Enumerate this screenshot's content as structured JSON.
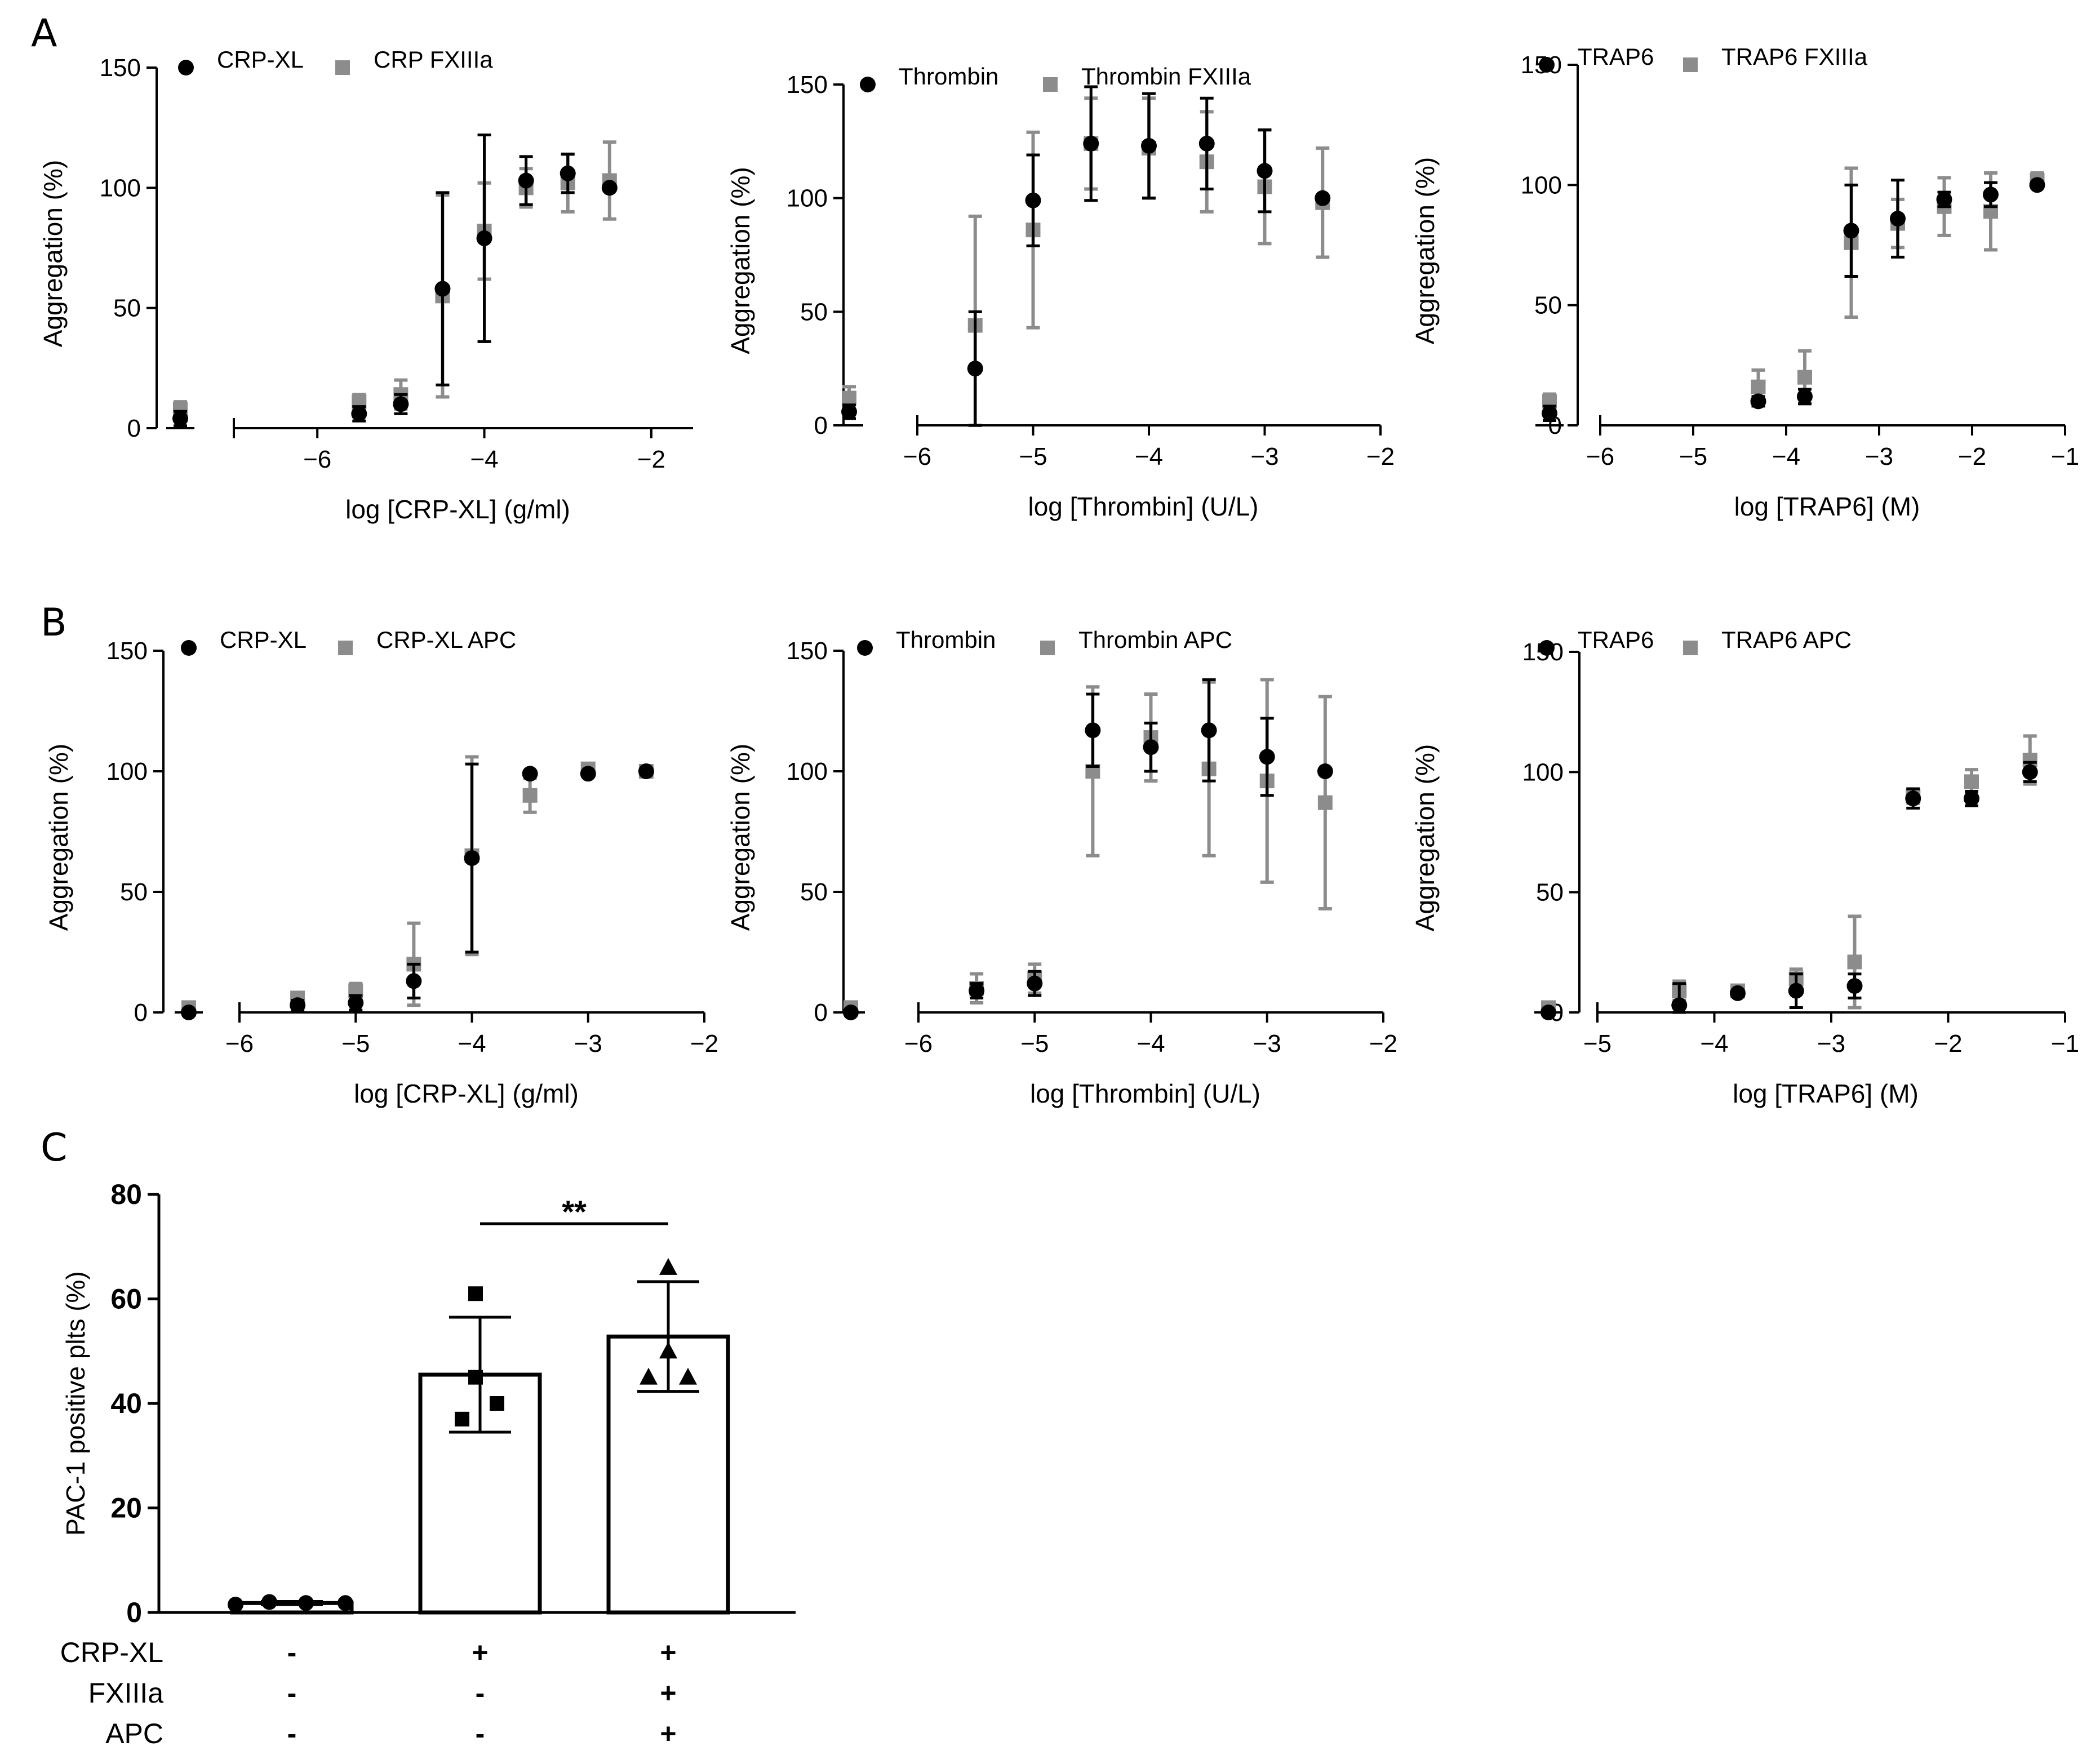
{
  "figure": {
    "panel_labels": [
      "A",
      "B",
      "C"
    ],
    "colors": {
      "black": "#000000",
      "gray": "#8c8c8c"
    }
  },
  "chart_data": [
    {
      "id": "A1",
      "type": "scatter",
      "xlabel": "log [CRP-XL] (g/ml)",
      "ylabel": "Aggregation (%)",
      "xlim": [
        -7,
        -1.5
      ],
      "ylim": [
        0,
        150
      ],
      "yticks": [
        0,
        50,
        100,
        150
      ],
      "xticks": [
        -6,
        -4,
        -2
      ],
      "baseline_x_label": "",
      "series": [
        {
          "name": "CRP-XL",
          "marker": "circle",
          "color": "#000000",
          "baseline": {
            "y": 4,
            "err": 3
          },
          "points": [
            {
              "x": -5.5,
              "y": 6,
              "err": 3
            },
            {
              "x": -5,
              "y": 10,
              "err": 4
            },
            {
              "x": -4.5,
              "y": 58,
              "err": 40
            },
            {
              "x": -4,
              "y": 79,
              "err": 43
            },
            {
              "x": -3.5,
              "y": 103,
              "err": 10
            },
            {
              "x": -3,
              "y": 106,
              "err": 8
            },
            {
              "x": -2.5,
              "y": 100,
              "err": 0
            }
          ]
        },
        {
          "name": "CRP FXIIIa",
          "marker": "square",
          "color": "#8c8c8c",
          "baseline": {
            "y": 8,
            "err": 3
          },
          "points": [
            {
              "x": -5.5,
              "y": 11,
              "err": 3
            },
            {
              "x": -5,
              "y": 14,
              "err": 6
            },
            {
              "x": -4.5,
              "y": 55,
              "err": 42
            },
            {
              "x": -4,
              "y": 82,
              "err": 20
            },
            {
              "x": -3.5,
              "y": 100,
              "err": 8
            },
            {
              "x": -3,
              "y": 102,
              "err": 12
            },
            {
              "x": -2.5,
              "y": 103,
              "err": 16
            }
          ]
        }
      ]
    },
    {
      "id": "A2",
      "type": "scatter",
      "xlabel": "log [Thrombin] (U/L)",
      "ylabel": "Aggregation (%)",
      "xlim": [
        -6,
        -2
      ],
      "ylim": [
        0,
        150
      ],
      "yticks": [
        0,
        50,
        100,
        150
      ],
      "xticks": [
        -6,
        -5,
        -4,
        -3,
        -2
      ],
      "series": [
        {
          "name": "Thrombin",
          "marker": "circle",
          "color": "#000000",
          "baseline": {
            "y": 6,
            "err": 3
          },
          "points": [
            {
              "x": -5.5,
              "y": 25,
              "err": 25
            },
            {
              "x": -5,
              "y": 99,
              "err": 20
            },
            {
              "x": -4.5,
              "y": 124,
              "err": 25
            },
            {
              "x": -4,
              "y": 123,
              "err": 23
            },
            {
              "x": -3.5,
              "y": 124,
              "err": 20
            },
            {
              "x": -3,
              "y": 112,
              "err": 18
            },
            {
              "x": -2.5,
              "y": 100,
              "err": 0
            }
          ]
        },
        {
          "name": "Thrombin FXIIIa",
          "marker": "square",
          "color": "#8c8c8c",
          "baseline": {
            "y": 12,
            "err": 5
          },
          "points": [
            {
              "x": -5.5,
              "y": 44,
              "err": 48
            },
            {
              "x": -5,
              "y": 86,
              "err": 43
            },
            {
              "x": -4.5,
              "y": 124,
              "err": 20
            },
            {
              "x": -4,
              "y": 122,
              "err": 22
            },
            {
              "x": -3.5,
              "y": 116,
              "err": 22
            },
            {
              "x": -3,
              "y": 105,
              "err": 25
            },
            {
              "x": -2.5,
              "y": 98,
              "err": 24
            }
          ]
        }
      ]
    },
    {
      "id": "A3",
      "type": "scatter",
      "xlabel": "log [TRAP6] (M)",
      "ylabel": "Aggregation (%)",
      "xlim": [
        -6,
        -1
      ],
      "ylim": [
        0,
        150
      ],
      "yticks": [
        0,
        50,
        100,
        150
      ],
      "xticks": [
        -6,
        -5,
        -4,
        -3,
        -2,
        -1
      ],
      "series": [
        {
          "name": "TRAP6",
          "marker": "circle",
          "color": "#000000",
          "baseline": {
            "y": 5,
            "err": 3
          },
          "points": [
            {
              "x": -4.3,
              "y": 10,
              "err": 2
            },
            {
              "x": -3.8,
              "y": 12,
              "err": 3
            },
            {
              "x": -3.3,
              "y": 81,
              "err": 19
            },
            {
              "x": -2.8,
              "y": 86,
              "err": 16
            },
            {
              "x": -2.3,
              "y": 94,
              "err": 3
            },
            {
              "x": -1.8,
              "y": 96,
              "err": 5
            },
            {
              "x": -1.3,
              "y": 100,
              "err": 0
            }
          ]
        },
        {
          "name": "TRAP6 FXIIIa",
          "marker": "square",
          "color": "#8c8c8c",
          "baseline": {
            "y": 10,
            "err": 3
          },
          "points": [
            {
              "x": -4.3,
              "y": 16,
              "err": 7
            },
            {
              "x": -3.8,
              "y": 20,
              "err": 11
            },
            {
              "x": -3.3,
              "y": 76,
              "err": 31
            },
            {
              "x": -2.8,
              "y": 84,
              "err": 10
            },
            {
              "x": -2.3,
              "y": 91,
              "err": 12
            },
            {
              "x": -1.8,
              "y": 89,
              "err": 16
            },
            {
              "x": -1.3,
              "y": 102,
              "err": 3
            }
          ]
        }
      ]
    },
    {
      "id": "B1",
      "type": "scatter",
      "xlabel": "log [CRP-XL] (g/ml)",
      "ylabel": "Aggregation (%)",
      "xlim": [
        -6,
        -2
      ],
      "ylim": [
        0,
        150
      ],
      "yticks": [
        0,
        50,
        100,
        150
      ],
      "xticks": [
        -6,
        -5,
        -4,
        -3,
        -2
      ],
      "series": [
        {
          "name": "CRP-XL",
          "marker": "circle",
          "color": "#000000",
          "baseline": {
            "y": 0,
            "err": 0
          },
          "points": [
            {
              "x": -5.5,
              "y": 3,
              "err": 2
            },
            {
              "x": -5,
              "y": 4,
              "err": 3
            },
            {
              "x": -4.5,
              "y": 13,
              "err": 7
            },
            {
              "x": -4,
              "y": 64,
              "err": 39
            },
            {
              "x": -3.5,
              "y": 99,
              "err": 1
            },
            {
              "x": -3,
              "y": 99,
              "err": 1
            },
            {
              "x": -2.5,
              "y": 100,
              "err": 0
            }
          ]
        },
        {
          "name": "CRP-XL APC",
          "marker": "square",
          "color": "#8c8c8c",
          "baseline": {
            "y": 2,
            "err": 2
          },
          "points": [
            {
              "x": -5.5,
              "y": 6,
              "err": 2
            },
            {
              "x": -5,
              "y": 9,
              "err": 3
            },
            {
              "x": -4.5,
              "y": 20,
              "err": 17
            },
            {
              "x": -4,
              "y": 65,
              "err": 41
            },
            {
              "x": -3.5,
              "y": 90,
              "err": 7
            },
            {
              "x": -3,
              "y": 101,
              "err": 2
            },
            {
              "x": -2.5,
              "y": 100,
              "err": 1
            }
          ]
        }
      ]
    },
    {
      "id": "B2",
      "type": "scatter",
      "xlabel": "log [Thrombin] (U/L)",
      "ylabel": "Aggregation (%)",
      "xlim": [
        -6,
        -2
      ],
      "ylim": [
        0,
        150
      ],
      "yticks": [
        0,
        50,
        100,
        150
      ],
      "xticks": [
        -6,
        -5,
        -4,
        -3,
        -2
      ],
      "series": [
        {
          "name": "Thrombin",
          "marker": "circle",
          "color": "#000000",
          "baseline": {
            "y": 0,
            "err": 0
          },
          "points": [
            {
              "x": -5.5,
              "y": 9,
              "err": 3
            },
            {
              "x": -5,
              "y": 12,
              "err": 5
            },
            {
              "x": -4.5,
              "y": 117,
              "err": 15
            },
            {
              "x": -4,
              "y": 110,
              "err": 10
            },
            {
              "x": -3.5,
              "y": 117,
              "err": 21
            },
            {
              "x": -3,
              "y": 106,
              "err": 16
            },
            {
              "x": -2.5,
              "y": 100,
              "err": 0
            }
          ]
        },
        {
          "name": "Thrombin APC",
          "marker": "square",
          "color": "#8c8c8c",
          "baseline": {
            "y": 2,
            "err": 2
          },
          "points": [
            {
              "x": -5.5,
              "y": 10,
              "err": 6
            },
            {
              "x": -5,
              "y": 14,
              "err": 6
            },
            {
              "x": -4.5,
              "y": 100,
              "err": 35
            },
            {
              "x": -4,
              "y": 114,
              "err": 18
            },
            {
              "x": -3.5,
              "y": 101,
              "err": 36
            },
            {
              "x": -3,
              "y": 96,
              "err": 42
            },
            {
              "x": -2.5,
              "y": 87,
              "err": 44
            }
          ]
        }
      ]
    },
    {
      "id": "B3",
      "type": "scatter",
      "xlabel": "log [TRAP6] (M)",
      "ylabel": "Aggregation (%)",
      "xlim": [
        -5,
        -1
      ],
      "ylim": [
        0,
        150
      ],
      "yticks": [
        0,
        50,
        100,
        150
      ],
      "xticks": [
        -5,
        -4,
        -3,
        -2,
        -1
      ],
      "series": [
        {
          "name": "TRAP6",
          "marker": "circle",
          "color": "#000000",
          "baseline": {
            "y": 0,
            "err": 0
          },
          "points": [
            {
              "x": -4.3,
              "y": 3,
              "err": 9
            },
            {
              "x": -3.8,
              "y": 8,
              "err": 1
            },
            {
              "x": -3.3,
              "y": 9,
              "err": 7
            },
            {
              "x": -2.8,
              "y": 11,
              "err": 5
            },
            {
              "x": -2.3,
              "y": 89,
              "err": 4
            },
            {
              "x": -1.8,
              "y": 89,
              "err": 3
            },
            {
              "x": -1.3,
              "y": 100,
              "err": 4
            }
          ]
        },
        {
          "name": "TRAP6 APC",
          "marker": "square",
          "color": "#8c8c8c",
          "baseline": {
            "y": 2,
            "err": 2
          },
          "points": [
            {
              "x": -4.3,
              "y": 9,
              "err": 4
            },
            {
              "x": -3.8,
              "y": 9,
              "err": 2
            },
            {
              "x": -3.3,
              "y": 14,
              "err": 4
            },
            {
              "x": -2.8,
              "y": 21,
              "err": 19
            },
            {
              "x": -2.3,
              "y": 90,
              "err": 3
            },
            {
              "x": -1.8,
              "y": 96,
              "err": 5
            },
            {
              "x": -1.3,
              "y": 105,
              "err": 10
            }
          ]
        }
      ]
    },
    {
      "id": "C",
      "type": "bar",
      "ylabel": "PAC-1 positive plts (%)",
      "ylim": [
        0,
        80
      ],
      "yticks": [
        0,
        20,
        40,
        60,
        80
      ],
      "condition_rows": [
        "CRP-XL",
        "FXIIIa",
        "APC"
      ],
      "bars": [
        {
          "mean": 1.8,
          "sd": 0.3,
          "marker": "circle",
          "points": [
            1.5,
            2.0,
            1.8,
            1.8
          ],
          "conditions": [
            "-",
            "-",
            "-"
          ]
        },
        {
          "mean": 45.5,
          "sd": 11,
          "marker": "square",
          "points": [
            61,
            45,
            40,
            37
          ],
          "conditions": [
            "+",
            "-",
            "-"
          ]
        },
        {
          "mean": 52.8,
          "sd": 10.5,
          "marker": "triangle",
          "points": [
            66,
            50,
            45,
            45
          ],
          "conditions": [
            "+",
            "+",
            "+"
          ]
        }
      ],
      "significance": {
        "from": 1,
        "to": 2,
        "label": "**"
      }
    }
  ]
}
